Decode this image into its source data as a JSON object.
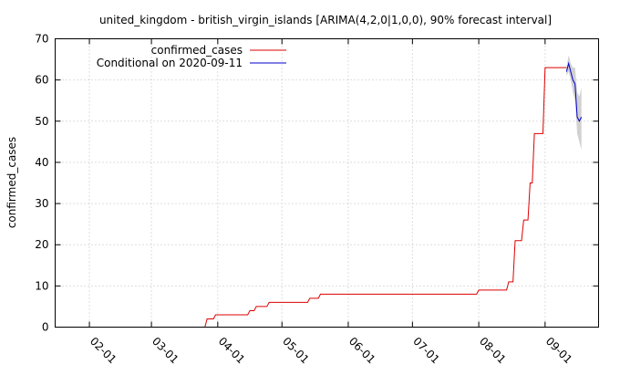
{
  "chart_data": {
    "type": "line",
    "title": "united_kingdom - british_virgin_islands [ARIMA(4,2,0|1,0,0), 90% forecast interval]",
    "xlabel": "",
    "ylabel": "confirmed_cases",
    "x_ticks": [
      "02-01",
      "03-01",
      "04-01",
      "05-01",
      "06-01",
      "07-01",
      "08-01",
      "09-01"
    ],
    "xlim": [
      "2020-01-16",
      "2020-09-26"
    ],
    "ylim": [
      0,
      70
    ],
    "y_ticks": [
      0,
      10,
      20,
      30,
      40,
      50,
      60,
      70
    ],
    "grid": true,
    "legend_position": "top-left",
    "series": [
      {
        "name": "confirmed_cases",
        "color": "#dd0000",
        "step": true,
        "points": [
          [
            "2020-01-16",
            0
          ],
          [
            "2020-03-26",
            0
          ],
          [
            "2020-03-27",
            2
          ],
          [
            "2020-03-30",
            2
          ],
          [
            "2020-03-31",
            3
          ],
          [
            "2020-04-15",
            3
          ],
          [
            "2020-04-16",
            4
          ],
          [
            "2020-04-18",
            4
          ],
          [
            "2020-04-19",
            5
          ],
          [
            "2020-04-24",
            5
          ],
          [
            "2020-04-25",
            6
          ],
          [
            "2020-05-13",
            6
          ],
          [
            "2020-05-14",
            7
          ],
          [
            "2020-05-18",
            7
          ],
          [
            "2020-05-19",
            8
          ],
          [
            "2020-07-31",
            8
          ],
          [
            "2020-08-01",
            9
          ],
          [
            "2020-08-14",
            9
          ],
          [
            "2020-08-15",
            11
          ],
          [
            "2020-08-17",
            11
          ],
          [
            "2020-08-18",
            21
          ],
          [
            "2020-08-21",
            21
          ],
          [
            "2020-08-22",
            26
          ],
          [
            "2020-08-24",
            26
          ],
          [
            "2020-08-25",
            35
          ],
          [
            "2020-08-26",
            35
          ],
          [
            "2020-08-27",
            47
          ],
          [
            "2020-08-31",
            47
          ],
          [
            "2020-09-01",
            63
          ],
          [
            "2020-09-11",
            63
          ]
        ]
      },
      {
        "name": "Conditional on 2020-09-11",
        "color": "#0000cc",
        "points": [
          [
            "2020-09-11",
            62
          ],
          [
            "2020-09-12",
            64
          ],
          [
            "2020-09-13",
            62
          ],
          [
            "2020-09-14",
            60
          ],
          [
            "2020-09-15",
            59
          ],
          [
            "2020-09-16",
            51
          ],
          [
            "2020-09-17",
            50
          ],
          [
            "2020-09-18",
            51
          ]
        ],
        "interval": {
          "level": "90%",
          "color": "#cccccc",
          "lower": [
            61,
            62,
            60,
            57,
            55,
            47,
            45,
            43
          ],
          "upper": [
            63,
            66,
            64,
            63,
            63,
            57,
            56,
            58
          ]
        }
      }
    ]
  }
}
